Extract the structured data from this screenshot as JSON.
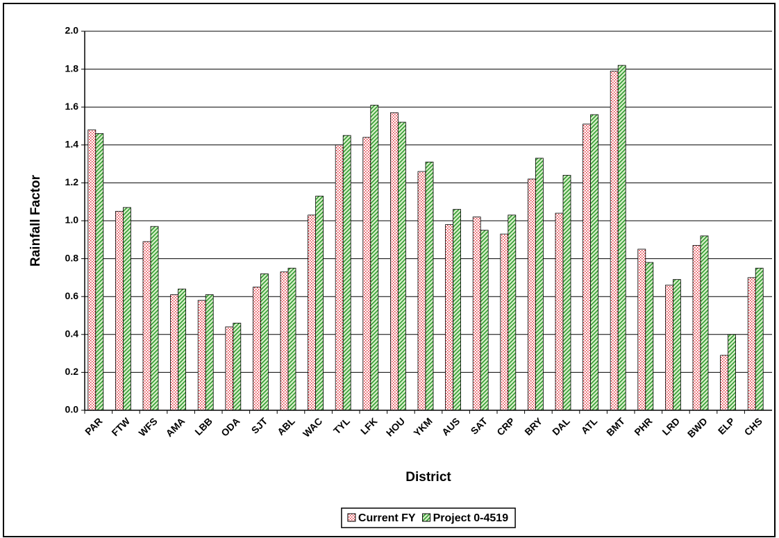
{
  "chart_data": {
    "type": "bar",
    "x_label": "District",
    "y_label": "Rainfall Factor",
    "categories": [
      "PAR",
      "FTW",
      "WFS",
      "AMA",
      "LBB",
      "ODA",
      "SJT",
      "ABL",
      "WAC",
      "TYL",
      "LFK",
      "HOU",
      "YKM",
      "AUS",
      "SAT",
      "CRP",
      "BRY",
      "DAL",
      "ATL",
      "BMT",
      "PHR",
      "LRD",
      "BWD",
      "ELP",
      "CHS"
    ],
    "series": [
      {
        "name": "Current FY",
        "color": "#e0202a",
        "pattern": "dots",
        "values": [
          1.48,
          1.05,
          0.89,
          0.61,
          0.58,
          0.44,
          0.65,
          0.73,
          1.03,
          1.4,
          1.44,
          1.57,
          1.26,
          0.98,
          1.02,
          0.93,
          1.22,
          1.04,
          1.51,
          1.79,
          0.85,
          0.66,
          0.87,
          0.29,
          0.7
        ]
      },
      {
        "name": "Project 0-4519",
        "color": "#2e9a2e",
        "pattern": "hatch",
        "values": [
          1.46,
          1.07,
          0.97,
          0.64,
          0.61,
          0.46,
          0.72,
          0.75,
          1.13,
          1.45,
          1.61,
          1.52,
          1.31,
          1.06,
          0.95,
          1.03,
          1.33,
          1.24,
          1.56,
          1.82,
          0.78,
          0.69,
          0.92,
          0.4,
          0.75
        ]
      }
    ],
    "ylim": [
      0,
      2
    ],
    "yticks": [
      {
        "value": 0,
        "label": "0.0"
      },
      0.2,
      0.4,
      0.6,
      0.8,
      {
        "value": 1,
        "label": "1.0"
      },
      1.2,
      1.4,
      1.6,
      1.8,
      {
        "value": 2,
        "label": "2.0"
      }
    ],
    "grid": true,
    "legend": "bottom"
  }
}
